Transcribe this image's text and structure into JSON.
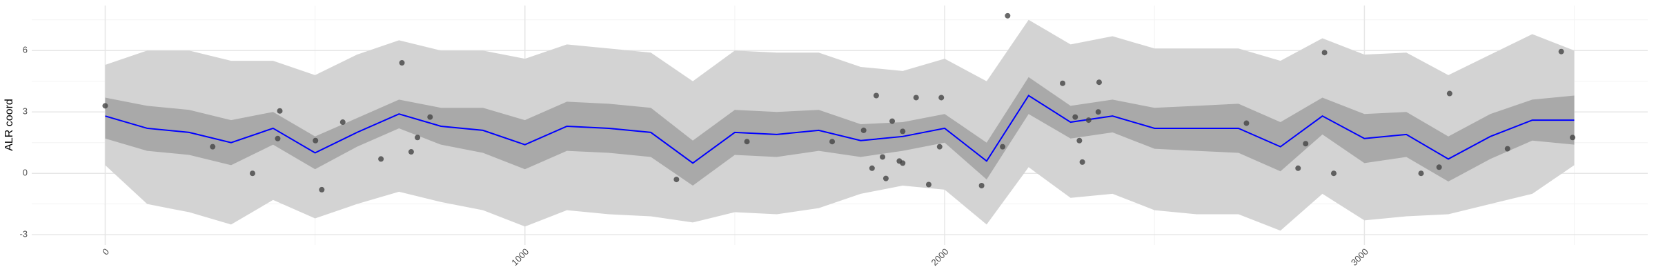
{
  "chart_data": {
    "type": "line",
    "y_label": "ALR coord",
    "xlim": [
      -175,
      3675
    ],
    "ylim": [
      -3.5,
      8.2
    ],
    "xticks": [
      0,
      1000,
      2000,
      3000
    ],
    "yticks": [
      -3,
      0,
      3,
      6
    ],
    "xminor": [
      500,
      1500,
      2500,
      3500
    ],
    "yminor": [
      -1.5,
      1.5,
      4.5,
      7.5
    ],
    "grid": true,
    "x": [
      0,
      100,
      200,
      300,
      400,
      500,
      600,
      700,
      800,
      900,
      1000,
      1100,
      1200,
      1300,
      1400,
      1500,
      1600,
      1700,
      1800,
      1900,
      2000,
      2100,
      2200,
      2300,
      2400,
      2500,
      2600,
      2700,
      2800,
      2900,
      3000,
      3100,
      3200,
      3300,
      3400,
      3500
    ],
    "bands": [
      {
        "color": "#d3d3d3",
        "lower": [
          0.4,
          -1.5,
          -1.9,
          -2.5,
          -1.3,
          -2.2,
          -1.5,
          -0.9,
          -1.4,
          -1.8,
          -2.6,
          -1.8,
          -2.0,
          -2.1,
          -2.4,
          -1.9,
          -2.0,
          -1.7,
          -1.0,
          -0.6,
          -0.8,
          -2.5,
          0.3,
          -1.2,
          -1.0,
          -1.8,
          -2.0,
          -2.0,
          -2.8,
          -1.0,
          -2.3,
          -2.1,
          -2.0,
          -1.5,
          -1.0,
          0.4
        ],
        "upper": [
          5.3,
          6.0,
          6.0,
          5.5,
          5.5,
          4.8,
          5.8,
          6.5,
          6.0,
          6.0,
          5.6,
          6.3,
          6.1,
          5.9,
          4.5,
          6.0,
          5.9,
          5.9,
          5.2,
          5.0,
          5.6,
          4.5,
          7.5,
          6.3,
          6.7,
          6.1,
          6.1,
          6.1,
          5.5,
          6.6,
          5.8,
          5.9,
          4.8,
          5.8,
          6.8,
          6.0
        ]
      },
      {
        "color": "#a9a9a9",
        "lower": [
          1.7,
          1.1,
          0.9,
          0.4,
          1.4,
          0.2,
          1.3,
          2.2,
          1.4,
          1.0,
          0.2,
          1.1,
          1.0,
          0.8,
          -0.6,
          0.9,
          0.8,
          1.1,
          0.8,
          1.1,
          1.5,
          -0.3,
          2.9,
          1.7,
          2.0,
          1.2,
          1.1,
          1.0,
          0.1,
          1.9,
          0.5,
          0.8,
          -0.4,
          0.7,
          1.6,
          1.4
        ],
        "upper": [
          3.7,
          3.3,
          3.1,
          2.6,
          3.0,
          1.8,
          2.7,
          3.6,
          3.2,
          3.2,
          2.6,
          3.5,
          3.4,
          3.2,
          1.6,
          3.1,
          3.0,
          3.1,
          2.4,
          2.5,
          2.9,
          1.5,
          4.7,
          3.3,
          3.6,
          3.2,
          3.3,
          3.4,
          2.5,
          3.7,
          2.9,
          3.0,
          1.8,
          2.9,
          3.6,
          3.8
        ]
      }
    ],
    "series": [
      {
        "color": "#0000ff",
        "values": [
          2.8,
          2.2,
          2.0,
          1.5,
          2.2,
          1.0,
          2.0,
          2.9,
          2.3,
          2.1,
          1.4,
          2.3,
          2.2,
          2.0,
          0.5,
          2.0,
          1.9,
          2.1,
          1.6,
          1.8,
          2.2,
          0.6,
          3.8,
          2.5,
          2.8,
          2.2,
          2.2,
          2.2,
          1.3,
          2.8,
          1.7,
          1.9,
          0.7,
          1.8,
          2.6,
          2.6
        ]
      }
    ],
    "points": {
      "color": "#444444",
      "x": [
        0,
        256,
        351,
        411,
        416,
        501,
        516,
        566,
        657,
        707,
        729,
        744,
        774,
        1361,
        1529,
        1732,
        1807,
        1827,
        1837,
        1852,
        1860,
        1875,
        1892,
        1900,
        1900,
        1932,
        1962,
        1988,
        1992,
        2088,
        2138,
        2150,
        2281,
        2311,
        2321,
        2328,
        2343,
        2366,
        2368,
        2719,
        2842,
        2860,
        2905,
        2927,
        3135,
        3178,
        3203,
        3341,
        3469,
        3496
      ],
      "y": [
        3.3,
        1.3,
        0,
        1.7,
        3.05,
        1.6,
        -0.8,
        2.5,
        0.7,
        5.4,
        1.05,
        1.75,
        2.75,
        -0.3,
        1.55,
        1.55,
        2.1,
        0.25,
        3.8,
        0.8,
        -0.25,
        2.55,
        0.6,
        2.05,
        0.5,
        3.7,
        -0.55,
        1.3,
        3.7,
        -0.6,
        1.3,
        7.7,
        4.4,
        2.75,
        1.6,
        0.55,
        2.6,
        3.0,
        4.45,
        2.45,
        0.25,
        1.45,
        5.9,
        0,
        0,
        0.3,
        3.9,
        1.2,
        5.95,
        1.75
      ]
    }
  }
}
